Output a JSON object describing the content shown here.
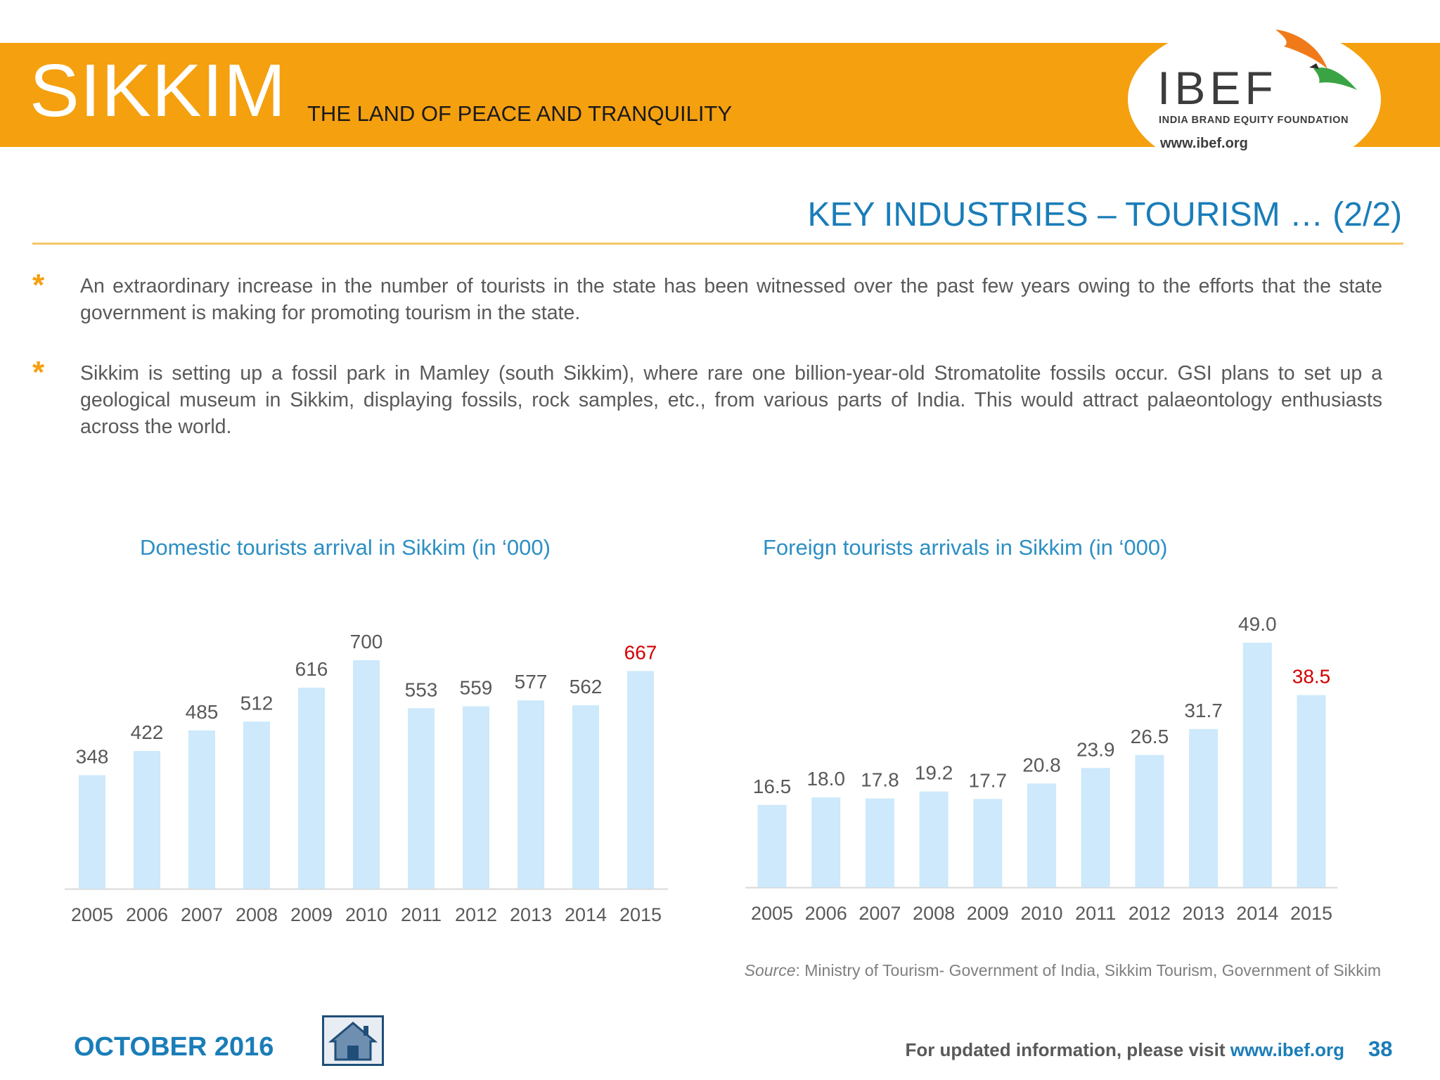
{
  "header": {
    "state_name": "SIKKIM",
    "tagline": "THE LAND OF PEACE AND TRANQUILITY",
    "logo_text": "IBEF",
    "logo_subtitle": "INDIA BRAND EQUITY FOUNDATION",
    "logo_url": "www.ibef.org"
  },
  "section_title": "KEY INDUSTRIES – TOURISM … (2/2)",
  "bullets": [
    "An extraordinary increase in the number of tourists in the state has been witnessed over the past few years owing to the efforts that the state government is making for promoting tourism in the state.",
    "Sikkim is setting up a fossil park in Mamley (south Sikkim), where rare one billion-year-old Stromatolite fossils occur. GSI plans to set up a geological museum in Sikkim, displaying fossils, rock samples, etc., from various parts of India. This would attract palaeontology enthusiasts across the world."
  ],
  "colors": {
    "banner": "#f5a00f",
    "title_blue": "#1a7db8",
    "bar_fill": "#cde9fb",
    "highlight_label": "#d40000"
  },
  "chart_data": [
    {
      "type": "bar",
      "title": "Domestic tourists arrival in Sikkim (in ‘000)",
      "categories": [
        "2005",
        "2006",
        "2007",
        "2008",
        "2009",
        "2010",
        "2011",
        "2012",
        "2013",
        "2014",
        "2015"
      ],
      "values": [
        348,
        422,
        485,
        512,
        616,
        700,
        553,
        559,
        577,
        562,
        667
      ],
      "data_labels": [
        "348",
        "422",
        "485",
        "512",
        "616",
        "700",
        "553",
        "559",
        "577",
        "562",
        "667"
      ],
      "highlight_index": 10,
      "ylim": [
        0,
        700
      ],
      "grid": false
    },
    {
      "type": "bar",
      "title": "Foreign tourists arrivals in Sikkim (in ‘000)",
      "categories": [
        "2005",
        "2006",
        "2007",
        "2008",
        "2009",
        "2010",
        "2011",
        "2012",
        "2013",
        "2014",
        "2015"
      ],
      "values": [
        16.5,
        18.0,
        17.8,
        19.2,
        17.7,
        20.8,
        23.9,
        26.5,
        31.7,
        49.0,
        38.5
      ],
      "data_labels": [
        "16.5",
        "18.0",
        "17.8",
        "19.2",
        "17.7",
        "20.8",
        "23.9",
        "26.5",
        "31.7",
        "49.0",
        "38.5"
      ],
      "highlight_index": 10,
      "ylim": [
        0,
        49
      ],
      "grid": false
    }
  ],
  "source": {
    "label": "Source",
    "text": ": Ministry of Tourism- Government of India, Sikkim Tourism, Government of Sikkim"
  },
  "footer": {
    "date": "OCTOBER 2016",
    "home_icon": "home-icon",
    "visit_text": "For updated information, please visit ",
    "visit_link": "www.ibef.org",
    "page_number": "38"
  }
}
